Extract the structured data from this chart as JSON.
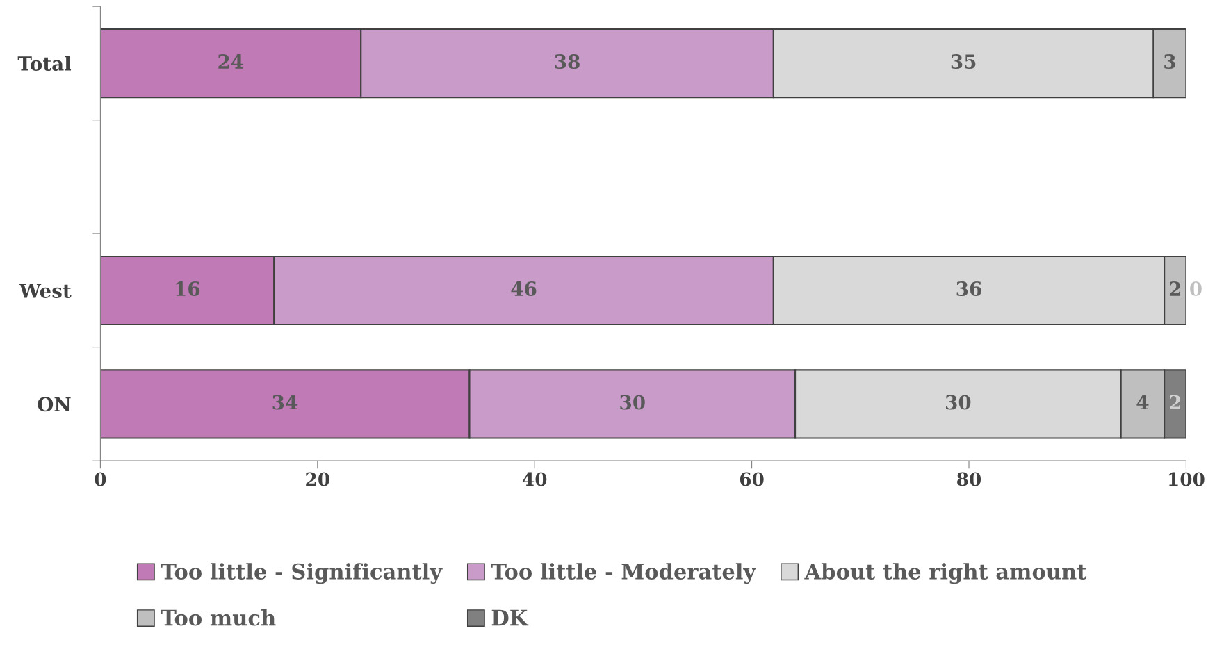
{
  "chart_data": {
    "type": "bar",
    "orientation": "horizontal",
    "stacked": true,
    "categories": [
      "Total",
      null,
      "West",
      "ON"
    ],
    "xlim": [
      0,
      100
    ],
    "xticks": [
      0,
      20,
      40,
      60,
      80,
      100
    ],
    "grid": false,
    "legend": "bottom",
    "series": [
      {
        "name": "Too little - Significantly",
        "color": "#c07ab5",
        "values": [
          24,
          null,
          16,
          34
        ],
        "value_labels": [
          "24",
          null,
          "16",
          "34"
        ]
      },
      {
        "name": "Too little - Moderately",
        "color": "#c89bc8",
        "values": [
          38,
          null,
          46,
          30
        ],
        "value_labels": [
          "38",
          null,
          "46",
          "30"
        ]
      },
      {
        "name": "About the right amount",
        "color": "#d9d9d9",
        "values": [
          35,
          null,
          36,
          30
        ],
        "value_labels": [
          "35",
          null,
          "36",
          "30"
        ]
      },
      {
        "name": "Too much",
        "color": "#bfbfbf",
        "values": [
          3,
          null,
          2,
          4
        ],
        "value_labels": [
          "3",
          null,
          "2",
          "4"
        ]
      },
      {
        "name": "DK",
        "color": "#808080",
        "values": [
          null,
          null,
          0,
          2
        ],
        "value_labels": [
          null,
          null,
          "0",
          "2"
        ]
      }
    ]
  }
}
